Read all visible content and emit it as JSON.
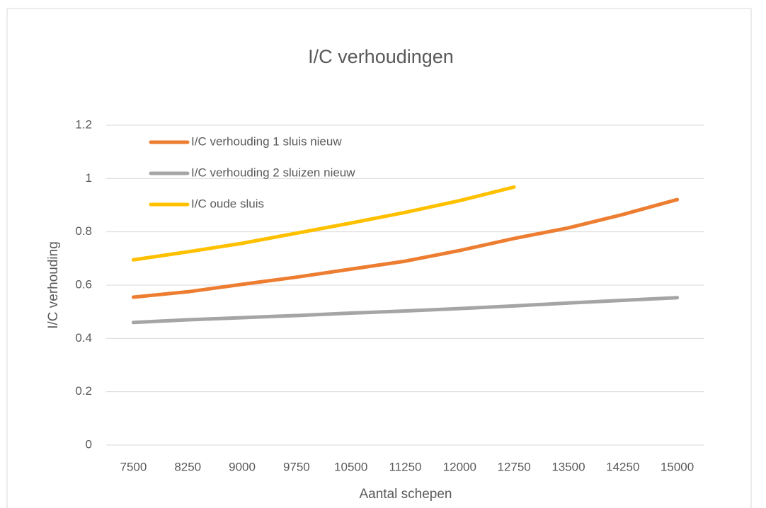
{
  "chart_data": {
    "type": "line",
    "title": "I/C verhoudingen",
    "x_label": "Aantal schepen",
    "y_label": "I/C verhouding",
    "categories": [
      "7500",
      "8250",
      "9000",
      "9750",
      "10500",
      "11250",
      "12000",
      "12750",
      "13500",
      "14250",
      "15000"
    ],
    "series": [
      {
        "name": "I/C verhouding 1 sluis nieuw",
        "color": "#ed7d31",
        "values": [
          0.555,
          0.575,
          0.603,
          0.63,
          0.66,
          0.69,
          0.73,
          0.775,
          0.815,
          0.865,
          0.921
        ]
      },
      {
        "name": "I/C verhouding 2 sluizen nieuw",
        "color": "#a5a5a5",
        "values": [
          0.46,
          0.47,
          0.478,
          0.486,
          0.495,
          0.503,
          0.512,
          0.522,
          0.533,
          0.543,
          0.553
        ]
      },
      {
        "name": "I/C oude sluis",
        "color": "#ffc000",
        "values": [
          0.695,
          0.725,
          0.757,
          0.795,
          0.833,
          0.873,
          0.917,
          0.968,
          null,
          null,
          null
        ]
      }
    ],
    "ylim": [
      0,
      1.2
    ],
    "yticks": [
      0,
      0.2,
      0.4,
      0.6,
      0.8,
      1,
      1.2
    ],
    "grid": true,
    "legend": "top-left"
  }
}
